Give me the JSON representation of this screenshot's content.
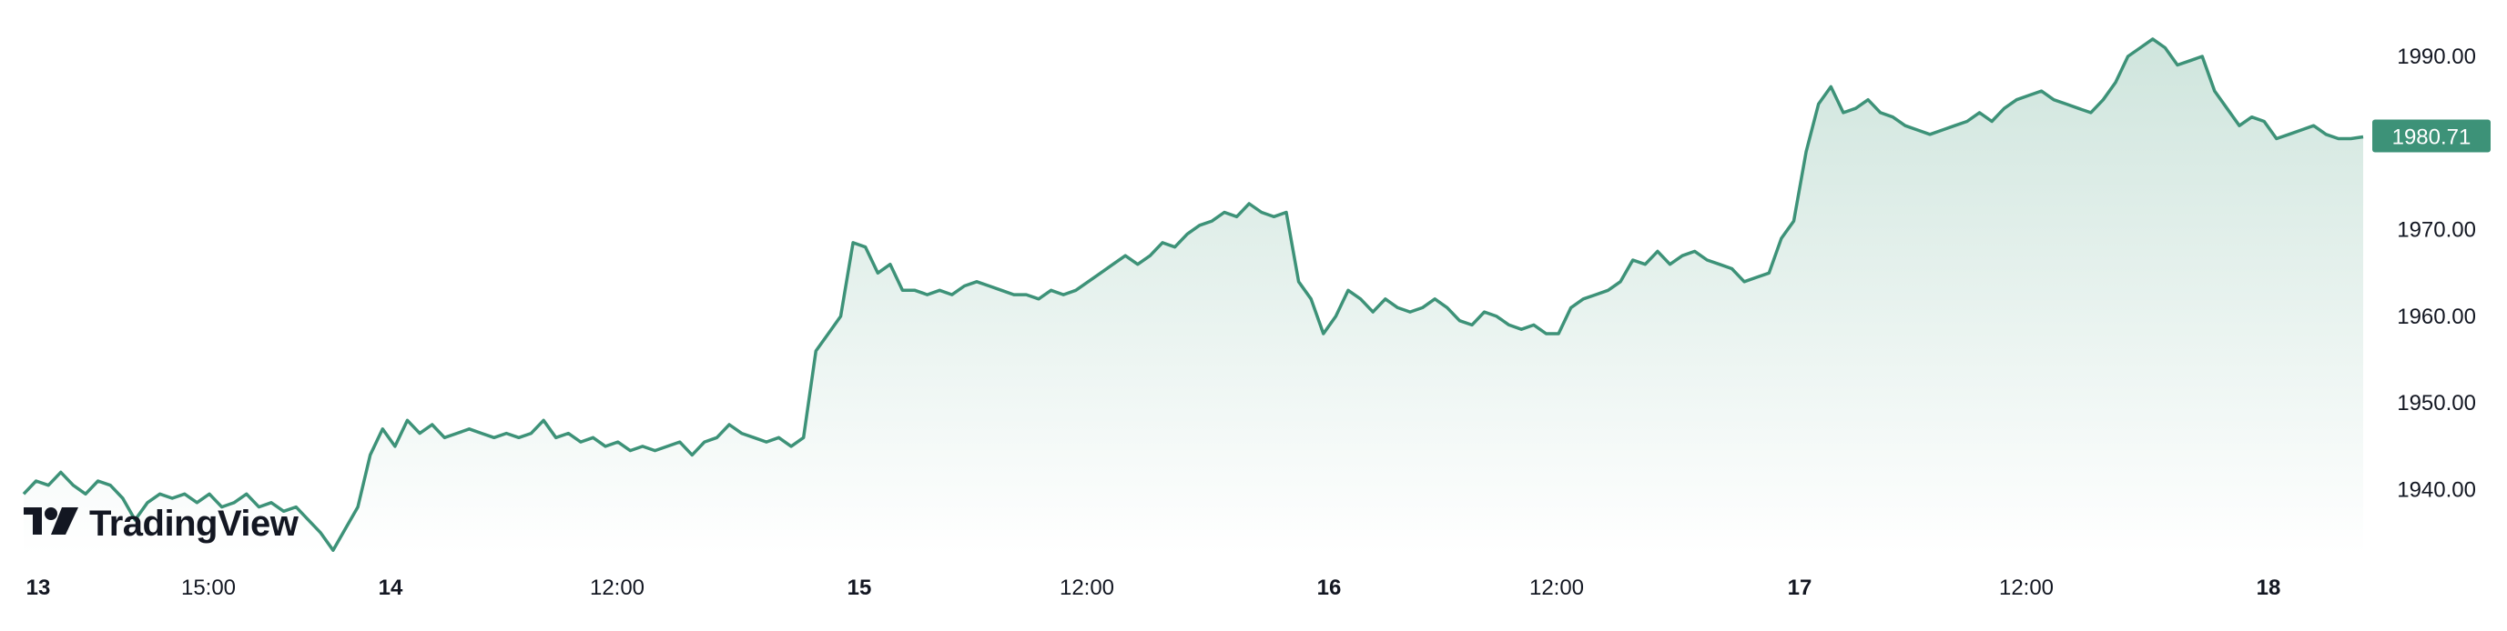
{
  "chart_data": {
    "type": "area",
    "y_ticks": [
      "1940.00",
      "1950.00",
      "1960.00",
      "1970.00",
      "1980.00",
      "1990.00"
    ],
    "ylim": [
      1933,
      1995
    ],
    "x_ticks": [
      {
        "label": "13",
        "day": true
      },
      {
        "label": "15:00",
        "day": false
      },
      {
        "label": "14",
        "day": true
      },
      {
        "label": "12:00",
        "day": false
      },
      {
        "label": "15",
        "day": true
      },
      {
        "label": "12:00",
        "day": false
      },
      {
        "label": "16",
        "day": true
      },
      {
        "label": "12:00",
        "day": false
      },
      {
        "label": "17",
        "day": true
      },
      {
        "label": "12:00",
        "day": false
      },
      {
        "label": "18",
        "day": true
      }
    ],
    "last_value": "1980.71",
    "grid": false,
    "series": [
      {
        "values": [
          1939.5,
          1941,
          1940.5,
          1942,
          1940.5,
          1939.5,
          1941,
          1940.5,
          1939,
          1936.5,
          1938.5,
          1939.5,
          1939,
          1939.5,
          1938.5,
          1939.5,
          1938,
          1938.5,
          1939.5,
          1938,
          1938.5,
          1937.5,
          1938,
          1936.5,
          1935,
          1933,
          1935.5,
          1938,
          1944,
          1947,
          1945,
          1948,
          1946.5,
          1947.5,
          1946,
          1946.5,
          1947,
          1946.5,
          1946,
          1946.5,
          1946,
          1946.5,
          1948,
          1946,
          1946.5,
          1945.5,
          1946,
          1945,
          1945.5,
          1944.5,
          1945,
          1944.5,
          1945,
          1945.5,
          1944,
          1945.5,
          1946,
          1947.5,
          1946.5,
          1946,
          1945.5,
          1946,
          1945,
          1946,
          1956,
          1958,
          1960,
          1968.5,
          1968,
          1965,
          1966,
          1963,
          1963,
          1962.5,
          1963,
          1962.5,
          1963.5,
          1964,
          1963.5,
          1963,
          1962.5,
          1962.5,
          1962,
          1963,
          1962.5,
          1963,
          1964,
          1965,
          1966,
          1967,
          1966,
          1967,
          1968.5,
          1968,
          1969.5,
          1970.5,
          1971,
          1972,
          1971.5,
          1973,
          1972,
          1971.5,
          1972,
          1964,
          1962,
          1958,
          1960,
          1963,
          1962,
          1960.5,
          1962,
          1961,
          1960.5,
          1961,
          1962,
          1961,
          1959.5,
          1959,
          1960.5,
          1960,
          1959,
          1958.5,
          1959,
          1958,
          1958,
          1961,
          1962,
          1962.5,
          1963,
          1964,
          1966.5,
          1966,
          1967.5,
          1966,
          1967,
          1967.5,
          1966.5,
          1966,
          1965.5,
          1964,
          1964.5,
          1965,
          1969,
          1971,
          1979,
          1984.5,
          1986.5,
          1983.5,
          1984,
          1985,
          1983.5,
          1983,
          1982,
          1981.5,
          1981,
          1981.5,
          1982,
          1982.5,
          1983.5,
          1982.5,
          1984,
          1985,
          1985.5,
          1986,
          1985,
          1984.5,
          1984,
          1983.5,
          1985,
          1987,
          1990,
          1991,
          1992,
          1991,
          1989,
          1989.5,
          1990,
          1986,
          1984,
          1982,
          1983,
          1982.5,
          1980.5,
          1981,
          1981.5,
          1982,
          1981,
          1980.5,
          1980.5,
          1980.71
        ]
      }
    ]
  },
  "watermark": {
    "text": "TradingView",
    "icon": "tradingview-logo-icon"
  },
  "colors": {
    "line": "#3d9278",
    "fill_top": "#cfe5dd",
    "fill_bottom": "#ffffff",
    "label_bg": "#3d9278"
  }
}
